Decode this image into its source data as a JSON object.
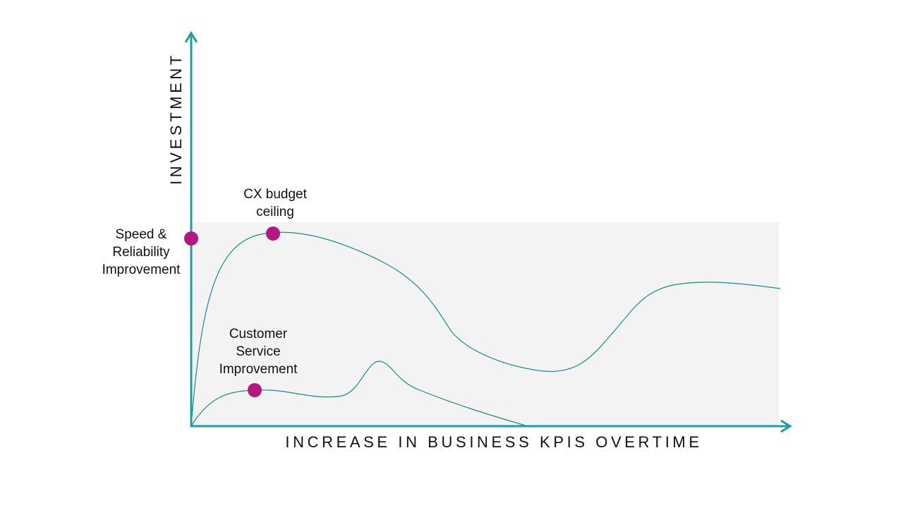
{
  "diagram": {
    "x_axis_label": "INCREASE IN BUSINESS KPIS OVERTIME",
    "y_axis_label": "INVESTMENT",
    "markers": [
      {
        "id": "speed",
        "label_lines": [
          "Speed &",
          "Reliability",
          "Improvement"
        ]
      },
      {
        "id": "cx",
        "label_lines": [
          "CX budget",
          "ceiling"
        ]
      },
      {
        "id": "cs",
        "label_lines": [
          "Customer",
          "Service",
          "Improvement"
        ]
      }
    ],
    "colors": {
      "axis": "#1aa0a0",
      "curve": "#1a8a8a",
      "marker": "#b4177f",
      "band": "#f3f3f3",
      "text": "#111111"
    }
  }
}
